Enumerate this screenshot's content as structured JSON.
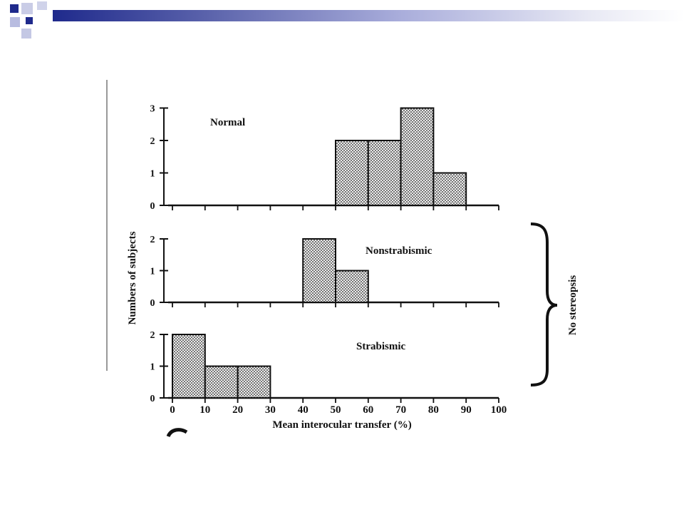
{
  "colors": {
    "accent_dark": "#1f2a8c",
    "accent_mid": "#8c92c8",
    "accent_light": "#d9dbee",
    "bar_fill": "#e6e6e6",
    "ink": "#111111"
  },
  "chart_data": {
    "type": "bar",
    "bin_edges": [
      0,
      10,
      20,
      30,
      40,
      50,
      60,
      70,
      80,
      90,
      100
    ],
    "x_tick_labels": [
      "0",
      "10",
      "20",
      "30",
      "40",
      "50",
      "60",
      "70",
      "80",
      "90",
      "100"
    ],
    "xlabel": "Mean interocular transfer (%)",
    "ylabel": "Numbers of subjects",
    "xlim": [
      0,
      100
    ],
    "bracket_label": "No stereopsis",
    "panels": [
      {
        "name": "Normal",
        "ylim": [
          0,
          3
        ],
        "y_ticks": [
          0,
          1,
          2,
          3
        ],
        "y_tick_labels": [
          "0",
          "1",
          "2",
          "3"
        ],
        "bins": [
          {
            "start": 50,
            "end": 60,
            "count": 2
          },
          {
            "start": 60,
            "end": 70,
            "count": 2
          },
          {
            "start": 70,
            "end": 80,
            "count": 3
          },
          {
            "start": 80,
            "end": 90,
            "count": 1
          }
        ]
      },
      {
        "name": "Nonstrabismic",
        "ylim": [
          0,
          2
        ],
        "y_ticks": [
          0,
          1,
          2
        ],
        "y_tick_labels": [
          "0",
          "1",
          "2"
        ],
        "bins": [
          {
            "start": 40,
            "end": 50,
            "count": 2
          },
          {
            "start": 50,
            "end": 60,
            "count": 1
          }
        ]
      },
      {
        "name": "Strabismic",
        "ylim": [
          0,
          2
        ],
        "y_ticks": [
          0,
          1,
          2
        ],
        "y_tick_labels": [
          "0",
          "1",
          "2"
        ],
        "bins": [
          {
            "start": 0,
            "end": 10,
            "count": 2
          },
          {
            "start": 10,
            "end": 20,
            "count": 1
          },
          {
            "start": 20,
            "end": 30,
            "count": 1
          }
        ]
      }
    ]
  }
}
